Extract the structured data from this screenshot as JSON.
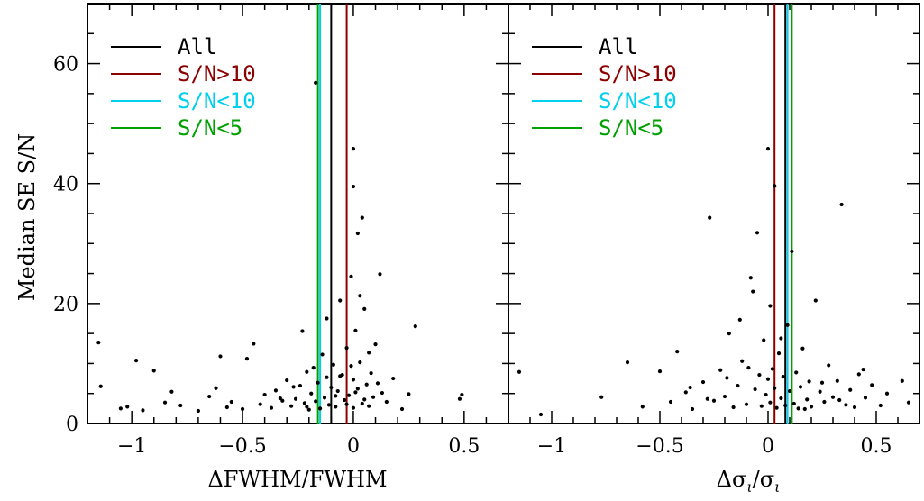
{
  "chart_data": {
    "type": "scatter",
    "shared_ylabel": "Median SE S/N",
    "ylim": [
      0,
      70
    ],
    "y_ticks": [
      0,
      20,
      40,
      60
    ],
    "legend": {
      "placement": "top-left",
      "entries": [
        {
          "label": "All",
          "color": "#000000"
        },
        {
          "label": "S/N>10",
          "color": "#8b0000"
        },
        {
          "label": "S/N<10",
          "color": "#00d0ee"
        },
        {
          "label": "S/N<5",
          "color": "#00a000"
        }
      ]
    },
    "panels": [
      {
        "xlabel": "ΔFWHM/FWHM",
        "xlim": [
          -1.2,
          0.7
        ],
        "x_ticks": [
          -1,
          -0.5,
          0,
          0.5
        ],
        "x_tick_labels": [
          "−1",
          "−0.5",
          "0",
          "0.5"
        ],
        "vlines": [
          {
            "series": "All",
            "x": -0.1,
            "color": "#000000"
          },
          {
            "series": "S/N>10",
            "x": -0.03,
            "color": "#8b0000"
          },
          {
            "series": "S/N<10",
            "x": -0.15,
            "color": "#00d0ee"
          },
          {
            "series": "S/N<5",
            "x": -0.16,
            "color": "#00a000"
          }
        ],
        "points": [
          [
            -1.15,
            13.5
          ],
          [
            -1.14,
            6.2
          ],
          [
            -1.05,
            2.5
          ],
          [
            -1.02,
            2.8
          ],
          [
            -0.98,
            10.5
          ],
          [
            -0.95,
            2.2
          ],
          [
            -0.9,
            8.8
          ],
          [
            -0.85,
            3.5
          ],
          [
            -0.82,
            5.3
          ],
          [
            -0.78,
            3.0
          ],
          [
            -0.7,
            2.1
          ],
          [
            -0.65,
            4.5
          ],
          [
            -0.62,
            5.9
          ],
          [
            -0.6,
            11.2
          ],
          [
            -0.57,
            2.7
          ],
          [
            -0.55,
            3.6
          ],
          [
            -0.5,
            2.4
          ],
          [
            -0.48,
            10.8
          ],
          [
            -0.45,
            13.3
          ],
          [
            -0.42,
            3.2
          ],
          [
            -0.4,
            4.8
          ],
          [
            -0.37,
            2.6
          ],
          [
            -0.35,
            5.5
          ],
          [
            -0.32,
            3.8
          ],
          [
            -0.3,
            7.2
          ],
          [
            -0.28,
            2.9
          ],
          [
            -0.26,
            4.1
          ],
          [
            -0.24,
            6.3
          ],
          [
            -0.22,
            3.4
          ],
          [
            -0.21,
            8.6
          ],
          [
            -0.2,
            2.3
          ],
          [
            -0.19,
            5.0
          ],
          [
            -0.18,
            9.3
          ],
          [
            -0.17,
            3.7
          ],
          [
            -0.16,
            6.8
          ],
          [
            -0.15,
            2.5
          ],
          [
            -0.14,
            11.5
          ],
          [
            -0.13,
            4.3
          ],
          [
            -0.12,
            17.5
          ],
          [
            -0.12,
            7.7
          ],
          [
            -0.11,
            3.1
          ],
          [
            -0.1,
            6.0
          ],
          [
            -0.09,
            9.8
          ],
          [
            -0.08,
            2.8
          ],
          [
            -0.07,
            5.4
          ],
          [
            -0.06,
            20.5
          ],
          [
            -0.05,
            8.1
          ],
          [
            -0.04,
            3.9
          ],
          [
            -0.03,
            12.6
          ],
          [
            -0.02,
            4.7
          ],
          [
            -0.01,
            24.5
          ],
          [
            0.0,
            7.3
          ],
          [
            0.0,
            2.6
          ],
          [
            0.01,
            15.5
          ],
          [
            0.02,
            31.7
          ],
          [
            0.02,
            5.8
          ],
          [
            0.03,
            10.2
          ],
          [
            0.04,
            34.3
          ],
          [
            0.04,
            3.3
          ],
          [
            0.05,
            19.1
          ],
          [
            0.06,
            6.5
          ],
          [
            0.07,
            2.9
          ],
          [
            0.08,
            8.4
          ],
          [
            0.09,
            4.4
          ],
          [
            0.1,
            13.2
          ],
          [
            0.12,
            24.9
          ],
          [
            0.13,
            5.1
          ],
          [
            0.15,
            3.6
          ],
          [
            0.18,
            7.5
          ],
          [
            0.22,
            2.4
          ],
          [
            0.25,
            4.9
          ],
          [
            0.28,
            16.2
          ],
          [
            0.48,
            4.1
          ],
          [
            0.49,
            4.8
          ],
          [
            -0.17,
            56.8
          ],
          [
            0.0,
            45.8
          ],
          [
            0.0,
            39.5
          ],
          [
            -0.23,
            15.4
          ],
          [
            -0.33,
            4.2
          ],
          [
            -0.27,
            6.1
          ],
          [
            -0.21,
            2.8
          ],
          [
            -0.08,
            4.6
          ],
          [
            -0.06,
            7.9
          ],
          [
            -0.03,
            3.2
          ],
          [
            -0.01,
            9.6
          ],
          [
            0.01,
            5.2
          ],
          [
            0.03,
            21.3
          ],
          [
            0.05,
            4.0
          ],
          [
            0.07,
            11.8
          ],
          [
            0.11,
            6.7
          ]
        ]
      },
      {
        "xlabel": "Δσ_ι/σ_ι",
        "xlim": [
          -1.2,
          0.7
        ],
        "x_ticks": [
          -1,
          -0.5,
          0,
          0.5
        ],
        "x_tick_labels": [
          "−1",
          "−0.5",
          "0",
          "0.5"
        ],
        "vlines": [
          {
            "series": "All",
            "x": 0.08,
            "color": "#000000"
          },
          {
            "series": "S/N>10",
            "x": 0.03,
            "color": "#8b0000"
          },
          {
            "series": "S/N<10",
            "x": 0.09,
            "color": "#00d0ee"
          },
          {
            "series": "S/N<5",
            "x": 0.11,
            "color": "#00a000"
          }
        ],
        "points": [
          [
            -1.15,
            8.6
          ],
          [
            -1.05,
            1.5
          ],
          [
            -0.77,
            4.4
          ],
          [
            -0.65,
            10.2
          ],
          [
            -0.58,
            2.8
          ],
          [
            -0.5,
            8.7
          ],
          [
            -0.45,
            3.6
          ],
          [
            -0.42,
            12.0
          ],
          [
            -0.38,
            5.2
          ],
          [
            -0.35,
            2.4
          ],
          [
            -0.3,
            6.9
          ],
          [
            -0.27,
            34.3
          ],
          [
            -0.25,
            3.8
          ],
          [
            -0.22,
            8.9
          ],
          [
            -0.2,
            4.5
          ],
          [
            -0.18,
            15.0
          ],
          [
            -0.16,
            2.7
          ],
          [
            -0.14,
            6.3
          ],
          [
            -0.12,
            10.4
          ],
          [
            -0.1,
            3.2
          ],
          [
            -0.08,
            24.3
          ],
          [
            -0.06,
            5.7
          ],
          [
            -0.05,
            31.8
          ],
          [
            -0.04,
            8.1
          ],
          [
            -0.03,
            2.9
          ],
          [
            -0.02,
            13.9
          ],
          [
            -0.01,
            4.8
          ],
          [
            0.0,
            45.8
          ],
          [
            0.0,
            7.4
          ],
          [
            0.01,
            19.6
          ],
          [
            0.01,
            3.5
          ],
          [
            0.02,
            9.1
          ],
          [
            0.03,
            39.6
          ],
          [
            0.03,
            5.9
          ],
          [
            0.04,
            2.6
          ],
          [
            0.05,
            11.7
          ],
          [
            0.06,
            4.2
          ],
          [
            0.07,
            7.8
          ],
          [
            0.08,
            3.0
          ],
          [
            0.09,
            16.4
          ],
          [
            0.1,
            5.4
          ],
          [
            0.11,
            28.7
          ],
          [
            0.12,
            3.3
          ],
          [
            0.13,
            8.5
          ],
          [
            0.14,
            2.5
          ],
          [
            0.15,
            6.1
          ],
          [
            0.16,
            12.5
          ],
          [
            0.18,
            4.0
          ],
          [
            0.19,
            7.0
          ],
          [
            0.2,
            2.8
          ],
          [
            0.22,
            20.5
          ],
          [
            0.24,
            5.3
          ],
          [
            0.26,
            3.6
          ],
          [
            0.28,
            9.7
          ],
          [
            0.3,
            4.4
          ],
          [
            0.32,
            7.1
          ],
          [
            0.34,
            36.5
          ],
          [
            0.36,
            3.1
          ],
          [
            0.38,
            5.6
          ],
          [
            0.4,
            2.7
          ],
          [
            0.42,
            8.2
          ],
          [
            0.45,
            4.3
          ],
          [
            0.48,
            6.4
          ],
          [
            0.52,
            3.0
          ],
          [
            0.55,
            5.0
          ],
          [
            0.62,
            7.1
          ],
          [
            0.65,
            3.5
          ],
          [
            -0.13,
            17.3
          ],
          [
            -0.07,
            22.0
          ],
          [
            -0.09,
            9.3
          ],
          [
            0.06,
            14.2
          ],
          [
            0.17,
            2.4
          ],
          [
            0.25,
            6.8
          ],
          [
            0.33,
            3.9
          ],
          [
            -0.19,
            7.6
          ],
          [
            -0.28,
            4.1
          ],
          [
            -0.36,
            6.0
          ],
          [
            0.44,
            9.0
          ]
        ]
      }
    ]
  }
}
